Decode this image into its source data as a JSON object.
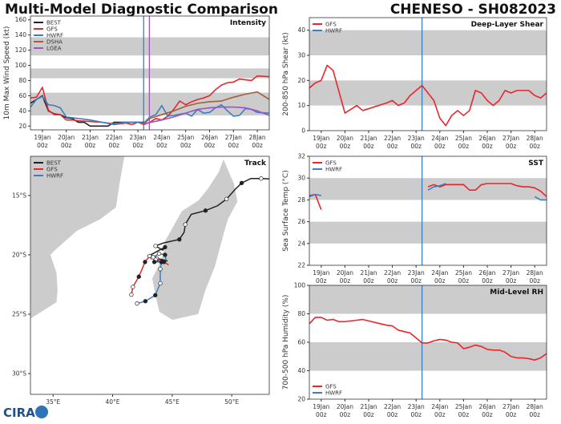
{
  "header": {
    "left_title": "Multi-Model Diagnostic Comparison",
    "right_title": "CHENESO - SH082023"
  },
  "logo_text": "CIRA",
  "colors": {
    "BEST": "#222222",
    "GFS": "#e8262b",
    "HWRF": "#3a7fc1",
    "DSHA": "#a0603a",
    "LGEA": "#a052c0",
    "band": "#cccccc"
  },
  "time_ticks": {
    "values": [
      0,
      1,
      2,
      3,
      4,
      5,
      6,
      7,
      8,
      9
    ],
    "labels": [
      [
        "19Jan",
        "00z"
      ],
      [
        "20Jan",
        "00z"
      ],
      [
        "21Jan",
        "00z"
      ],
      [
        "22Jan",
        "00z"
      ],
      [
        "23Jan",
        "00z"
      ],
      [
        "24Jan",
        "00z"
      ],
      [
        "25Jan",
        "00z"
      ],
      [
        "26Jan",
        "00z"
      ],
      [
        "27Jan",
        "00z"
      ],
      [
        "28Jan",
        "00z"
      ]
    ],
    "units": "days since 19Jan 00z",
    "xlim": [
      -0.5,
      9.5
    ]
  },
  "chart_data": [
    {
      "id": "intensity",
      "type": "line",
      "title": "Intensity",
      "ylabel": "10m Max Wind Speed (kt)",
      "ylim": [
        15,
        165
      ],
      "yticks": [
        20,
        40,
        60,
        80,
        100,
        120,
        140,
        160
      ],
      "bands": [
        [
          34,
          64
        ],
        [
          83,
          96
        ],
        [
          113,
          137
        ]
      ],
      "vlines": [
        {
          "model": "HWRF",
          "x": 4.24
        },
        {
          "model": "LGEA",
          "x": 4.48
        }
      ],
      "legend": [
        "BEST",
        "GFS",
        "HWRF",
        "DSHA",
        "LGEA"
      ],
      "legend_position": "top-left",
      "series": [
        {
          "name": "BEST",
          "x": [
            -0.5,
            -0.25,
            0,
            0.25,
            0.5,
            0.75,
            1,
            1.25,
            1.5,
            1.75,
            2,
            2.25,
            2.5,
            2.75,
            3,
            3.25,
            3.5,
            3.75,
            4,
            4.25
          ],
          "y": [
            50,
            55,
            60,
            40,
            36,
            35,
            31,
            30,
            25,
            25,
            20,
            20,
            20,
            20,
            25,
            25,
            25,
            25,
            25,
            25
          ]
        },
        {
          "name": "GFS",
          "x": [
            -0.5,
            -0.25,
            0,
            0.25,
            0.5,
            0.75,
            1,
            1.25,
            1.5,
            2,
            2.5,
            3,
            3.5,
            3.75,
            4,
            4.25,
            4.5,
            4.75,
            5,
            5.25,
            5.5,
            5.75,
            6,
            6.25,
            6.5,
            6.75,
            7,
            7.25,
            7.5,
            7.75,
            8,
            8.25,
            8.5,
            8.75,
            9,
            9.5
          ],
          "y": [
            57,
            58,
            71,
            41,
            35,
            35,
            28,
            28,
            27,
            26,
            25,
            22,
            24,
            22,
            25,
            22,
            25,
            30,
            28,
            33,
            42,
            53,
            48,
            52,
            55,
            57,
            60,
            68,
            74,
            77,
            78,
            82,
            81,
            80,
            86,
            85
          ]
        },
        {
          "name": "HWRF",
          "x": [
            -0.5,
            -0.25,
            0,
            0.25,
            0.5,
            0.75,
            1,
            1.5,
            2,
            2.5,
            3,
            3.5,
            4,
            4.25,
            4.5,
            4.75,
            5,
            5.25,
            5.5,
            6,
            6.25,
            6.5,
            6.75,
            7,
            7.25,
            7.5,
            7.75,
            8,
            8.25,
            8.5,
            8.75,
            9,
            9.5
          ],
          "y": [
            45,
            55,
            59,
            48,
            47,
            44,
            32,
            30,
            28,
            25,
            23,
            25,
            25,
            24,
            32,
            35,
            47,
            33,
            34,
            37,
            33,
            42,
            37,
            38,
            44,
            48,
            40,
            33,
            34,
            43,
            42,
            38,
            37
          ]
        },
        {
          "name": "DSHA",
          "x": [
            4.25,
            4.5,
            5,
            5.5,
            6,
            6.5,
            7,
            7.5,
            8,
            8.5,
            9,
            9.5
          ],
          "y": [
            23,
            30,
            35,
            40,
            46,
            50,
            52,
            53,
            58,
            62,
            65,
            55
          ]
        },
        {
          "name": "LGEA",
          "x": [
            4.25,
            5,
            5.5,
            6,
            6.5,
            7,
            7.5,
            8,
            8.5,
            9,
            9.5
          ],
          "y": [
            23,
            28,
            32,
            37,
            42,
            44,
            45,
            45,
            44,
            40,
            34
          ]
        }
      ]
    },
    {
      "id": "shear",
      "type": "line",
      "title": "Deep-Layer Shear",
      "ylabel": "200-850 hPa Shear (kt)",
      "ylim": [
        0,
        45
      ],
      "yticks": [
        0,
        10,
        20,
        30,
        40
      ],
      "bands": [
        [
          10,
          20
        ],
        [
          30,
          40
        ]
      ],
      "vlines": [
        {
          "model": "HWRF",
          "x": 4.25
        }
      ],
      "legend": [
        "GFS",
        "HWRF"
      ],
      "legend_position": "top-left",
      "series": [
        {
          "name": "GFS",
          "x": [
            -0.5,
            -0.25,
            0,
            0.25,
            0.5,
            1,
            1.5,
            1.75,
            2.75,
            3,
            3.25,
            3.5,
            3.75,
            4.25,
            4.75,
            5,
            5.25,
            5.5,
            5.75,
            6,
            6.25,
            6.5,
            6.75,
            7,
            7.25,
            7.5,
            7.75,
            8,
            8.25,
            8.75,
            9,
            9.25,
            9.5
          ],
          "y": [
            17,
            19,
            20,
            26,
            24,
            7,
            10,
            8,
            11,
            12,
            10,
            11,
            14,
            18,
            12,
            5,
            2,
            6,
            8,
            6,
            8,
            16,
            15,
            12,
            10,
            12,
            16,
            15,
            16,
            16,
            14,
            13,
            15
          ]
        }
      ]
    },
    {
      "id": "sst",
      "type": "line",
      "title": "SST",
      "ylabel": "Sea Surface Temp (°C)",
      "ylim": [
        22,
        32
      ],
      "yticks": [
        22,
        24,
        26,
        28,
        30,
        32
      ],
      "bands": [
        [
          24,
          26
        ],
        [
          28,
          30
        ],
        [
          32,
          33
        ]
      ],
      "vlines": [
        {
          "model": "HWRF",
          "x": 4.25
        }
      ],
      "legend": [
        "GFS",
        "HWRF"
      ],
      "legend_position": "top-left",
      "series": [
        {
          "name": "GFS",
          "segments": [
            {
              "x": [
                -0.5,
                -0.25,
                0
              ],
              "y": [
                28.4,
                28.5,
                27.1
              ]
            },
            {
              "x": [
                4.5,
                4.75,
                5,
                5.25,
                5.5,
                5.75,
                6,
                6.25,
                6.5,
                6.75,
                7,
                7.5,
                8,
                8.25,
                8.5,
                8.75,
                9,
                9.25,
                9.5
              ],
              "y": [
                29.2,
                29.4,
                29.2,
                29.4,
                29.4,
                29.4,
                29.4,
                28.9,
                28.9,
                29.4,
                29.5,
                29.5,
                29.5,
                29.3,
                29.2,
                29.2,
                29.1,
                28.8,
                28.3
              ]
            }
          ]
        },
        {
          "name": "HWRF",
          "segments": [
            {
              "x": [
                -0.5,
                -0.25,
                0
              ],
              "y": [
                28.3,
                28.5,
                28.4
              ]
            },
            {
              "x": [
                4.5,
                4.75,
                5,
                5.25
              ],
              "y": [
                28.9,
                29.2,
                29.3,
                29.5
              ]
            },
            {
              "x": [
                9,
                9.25,
                9.5
              ],
              "y": [
                28.3,
                28.0,
                28.0
              ]
            }
          ]
        }
      ]
    },
    {
      "id": "rh",
      "type": "line",
      "title": "Mid-Level RH",
      "ylabel": "700-500 hPa Humidity (%)",
      "ylim": [
        20,
        100
      ],
      "yticks": [
        20,
        40,
        60,
        80,
        100
      ],
      "bands": [
        [
          40,
          60
        ],
        [
          80,
          100
        ]
      ],
      "vlines": [
        {
          "model": "HWRF",
          "x": 4.25
        }
      ],
      "legend": [
        "GFS",
        "HWRF"
      ],
      "legend_position": "bottom-left",
      "series": [
        {
          "name": "GFS",
          "x": [
            -0.5,
            -0.25,
            0,
            0.25,
            0.5,
            0.75,
            1,
            1.5,
            1.75,
            2,
            2.5,
            2.75,
            3,
            3.25,
            3.5,
            3.75,
            4,
            4.25,
            4.5,
            4.75,
            5,
            5.25,
            5.5,
            5.75,
            6,
            6.25,
            6.5,
            6.75,
            7,
            7.25,
            7.5,
            7.75,
            8,
            8.25,
            8.5,
            8.75,
            9,
            9.25,
            9.5
          ],
          "y": [
            73,
            77.5,
            77.5,
            75.5,
            76,
            74.5,
            74.5,
            75.5,
            76,
            75,
            73,
            72,
            71.5,
            68.5,
            67.5,
            66.5,
            63,
            59.5,
            59.5,
            61,
            62,
            61.5,
            60,
            59.5,
            55.5,
            56.5,
            58,
            57,
            55,
            54.5,
            54.5,
            53,
            50,
            49,
            49,
            48.5,
            47.5,
            49,
            52
          ]
        }
      ]
    },
    {
      "id": "track",
      "type": "scatter",
      "title": "Track",
      "xlim": [
        33.1,
        53.15
      ],
      "ylim": [
        -31.75,
        -11.7
      ],
      "xticks": [
        35,
        40,
        45,
        50
      ],
      "xtick_labels": [
        "35°E",
        "40°E",
        "45°E",
        "50°E"
      ],
      "yticks": [
        -15,
        -20,
        -25,
        -30
      ],
      "ytick_labels": [
        "15°S",
        "20°S",
        "25°S",
        "30°S"
      ],
      "legend": [
        "BEST",
        "GFS",
        "HWRF"
      ],
      "legend_position": "top-left",
      "series": [
        {
          "name": "BEST",
          "lonlat": [
            [
              53.5,
              -13.65
            ],
            [
              53.07,
              -13.6
            ],
            [
              52.47,
              -13.57
            ],
            [
              51.6,
              -13.57
            ],
            [
              50.83,
              -13.95
            ],
            [
              50.27,
              -14.5
            ],
            [
              49.56,
              -15.3
            ],
            [
              48.8,
              -15.87
            ],
            [
              47.8,
              -16.27
            ],
            [
              46.6,
              -16.59
            ],
            [
              46.1,
              -17.44
            ],
            [
              46.0,
              -18.1
            ],
            [
              45.6,
              -18.7
            ],
            [
              44.33,
              -18.98
            ],
            [
              43.6,
              -19.25
            ],
            [
              44.2,
              -19.6
            ],
            [
              44.4,
              -19.35
            ],
            [
              43.0,
              -20.1
            ],
            [
              43.3,
              -20.2
            ],
            [
              43.6,
              -20.5
            ],
            [
              44.1,
              -20.6
            ],
            [
              44.6,
              -20.5
            ],
            [
              43.7,
              -20.3
            ]
          ]
        },
        {
          "name": "GFS",
          "lonlat": [
            [
              44.7,
              -20.85
            ],
            [
              44.3,
              -20.6
            ],
            [
              43.6,
              -20.4
            ],
            [
              43.1,
              -20.1
            ],
            [
              42.72,
              -20.6
            ],
            [
              42.2,
              -21.84
            ],
            [
              41.7,
              -22.7
            ],
            [
              41.57,
              -23.35
            ]
          ]
        },
        {
          "name": "HWRF",
          "lonlat": [
            [
              44.5,
              -20.5
            ],
            [
              44.4,
              -20.0
            ],
            [
              43.9,
              -19.9
            ],
            [
              43.4,
              -20.2
            ],
            [
              43.5,
              -20.6
            ],
            [
              44.1,
              -20.6
            ],
            [
              44.0,
              -21.2
            ],
            [
              44.0,
              -22.4
            ],
            [
              43.58,
              -23.4
            ],
            [
              42.75,
              -23.9
            ],
            [
              42.05,
              -24.1
            ]
          ]
        }
      ]
    }
  ]
}
